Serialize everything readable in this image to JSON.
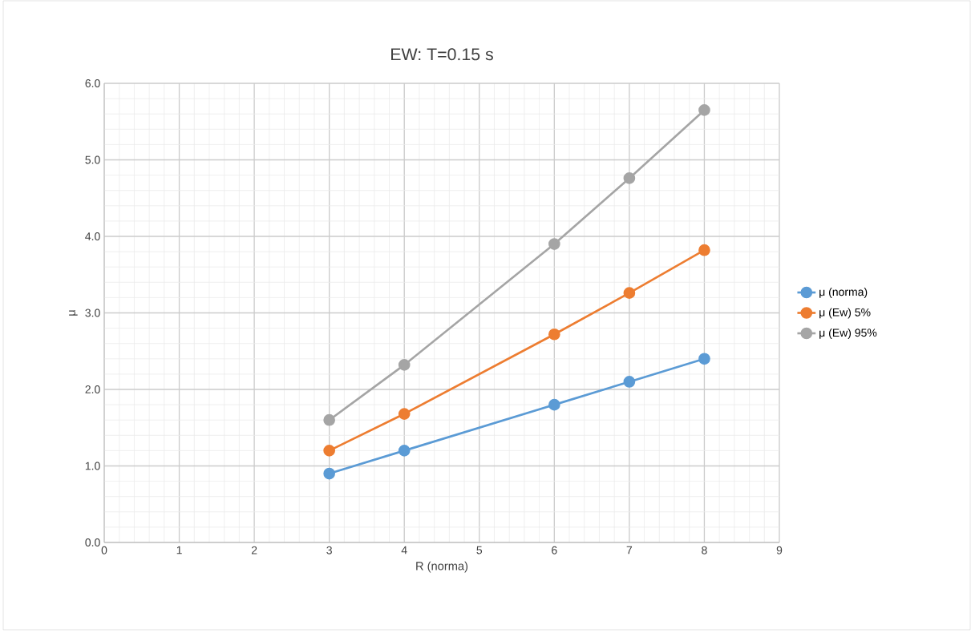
{
  "chart_data": {
    "type": "line",
    "title": "EW: T=0.15 s",
    "xlabel": "R (norma)",
    "ylabel": "μ",
    "x": [
      3,
      4,
      6,
      7,
      8
    ],
    "series": [
      {
        "name": "μ (norma)",
        "color": "#5b9bd5",
        "values": [
          0.9,
          1.2,
          1.8,
          2.1,
          2.4
        ]
      },
      {
        "name": "μ (Ew) 5%",
        "color": "#ed7d31",
        "values": [
          1.2,
          1.68,
          2.72,
          3.26,
          3.82
        ]
      },
      {
        "name": "μ (Ew) 95%",
        "color": "#a5a5a5",
        "values": [
          1.6,
          2.32,
          3.9,
          4.76,
          5.65
        ]
      }
    ],
    "xlim": [
      0,
      9
    ],
    "xticks": [
      0,
      1,
      2,
      3,
      4,
      5,
      6,
      7,
      8,
      9
    ],
    "ylim": [
      0,
      6
    ],
    "yticks": [
      {
        "value": 0,
        "label": "0.0"
      },
      {
        "value": 1,
        "label": "1.0"
      },
      {
        "value": 2,
        "label": "2.0"
      },
      {
        "value": 3,
        "label": "3.0"
      },
      {
        "value": 4,
        "label": "4.0"
      },
      {
        "value": 5,
        "label": "5.0"
      },
      {
        "value": 6,
        "label": "6.0"
      }
    ],
    "grid": true,
    "legend": "right",
    "marker": "circle",
    "line_style": "solid"
  }
}
